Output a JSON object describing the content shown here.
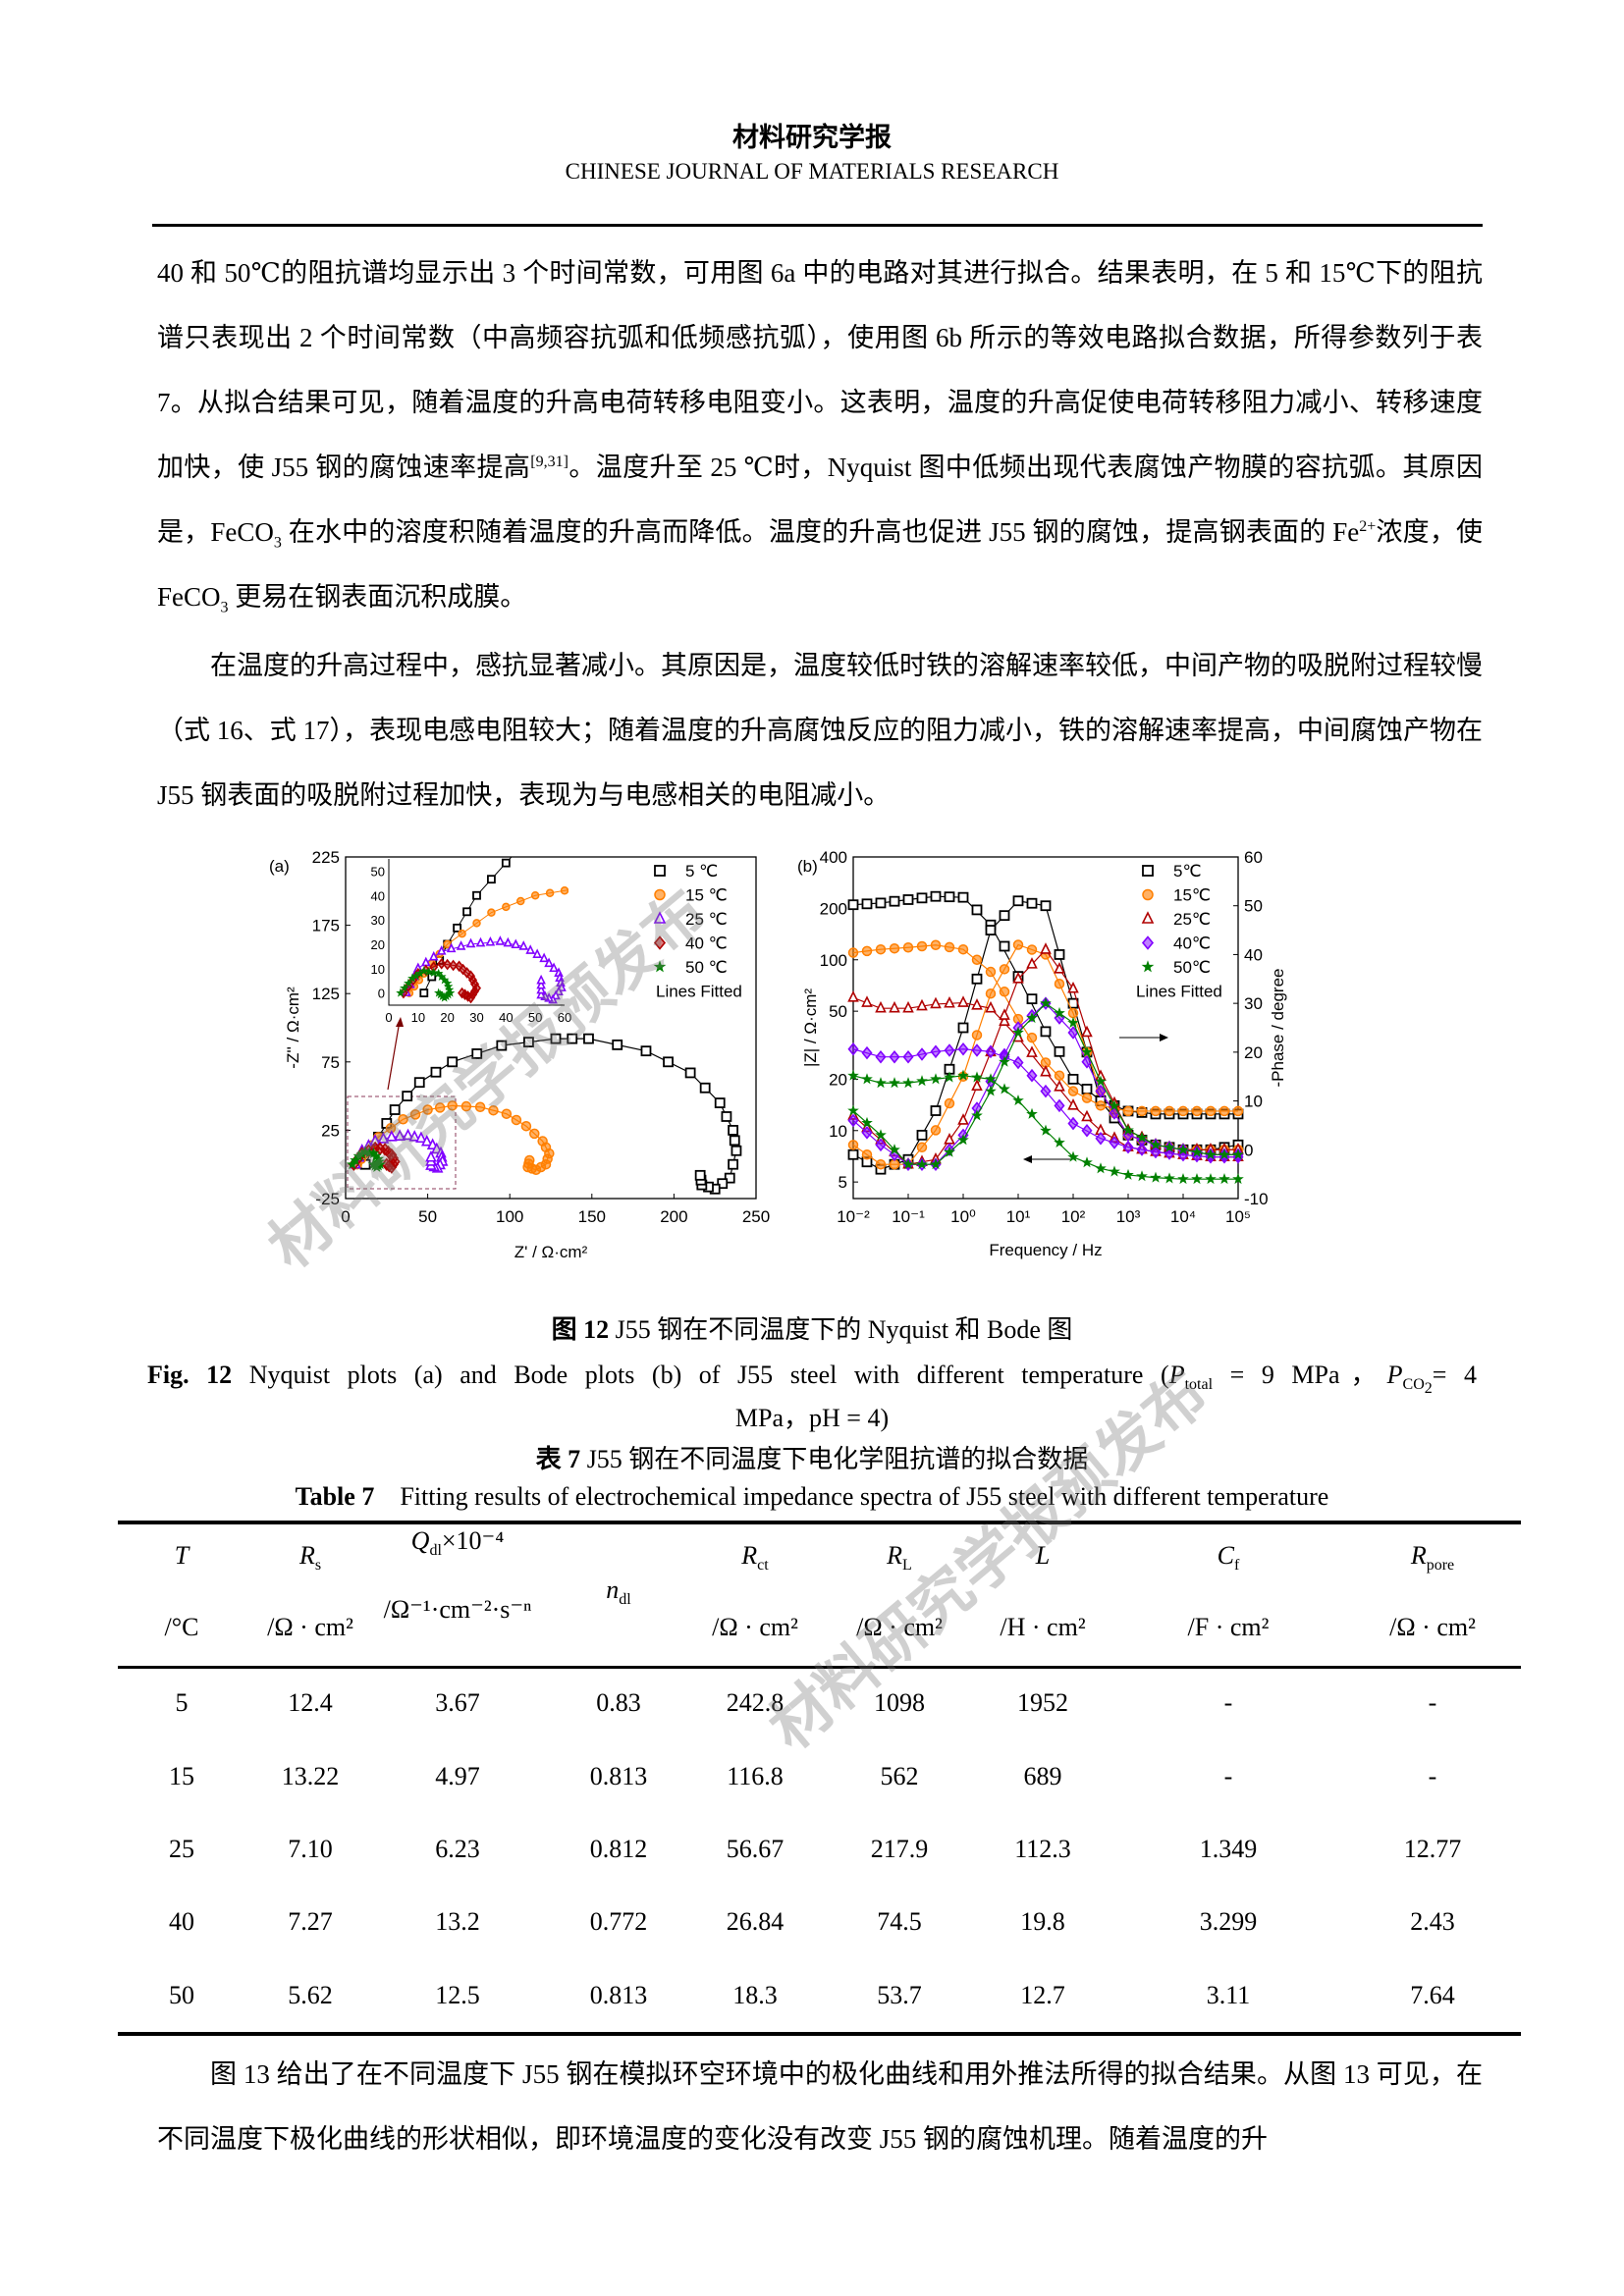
{
  "header": {
    "journal_cn": "材料研究学报",
    "journal_en": "CHINESE JOURNAL OF MATERIALS RESEARCH"
  },
  "paragraphs": [
    {
      "indent": false,
      "segments": [
        {
          "t": "40 和 50℃的阻抗谱均显示出 3 个时间常数，可用图 6a 中的电路对其进行拟合。结果表明，在 5 和 15℃下的阻抗谱只表现出 2 个时间常数（中高频容抗弧和低频感抗弧），使用图 6b 所示的等效电路拟合数据，所得参数列于表 7。从拟合结果可见，随着温度的升高电荷转移电阻变小。这表明，温度的升高促使电荷转移阻力减小、转移速度加快，使 J55 钢的腐蚀速率提高"
        },
        {
          "t": "[9,31]",
          "sup": true
        },
        {
          "t": "。温度升至 25 ℃时，Nyquist 图中低频出现代表腐蚀产物膜的容抗弧。其原因是，FeCO"
        },
        {
          "t": "3",
          "sub": true
        },
        {
          "t": " 在水中的溶度积随着温度的升高而降低。温度的升高也促进 J55 钢的腐蚀，提高钢表面的 Fe"
        },
        {
          "t": "2+",
          "sup": true
        },
        {
          "t": "浓度，使 FeCO"
        },
        {
          "t": "3",
          "sub": true
        },
        {
          "t": " 更易在钢表面沉积成膜。"
        }
      ]
    },
    {
      "indent": true,
      "segments": [
        {
          "t": "在温度的升高过程中，感抗显著减小。其原因是，温度较低时铁的溶解速率较低，中间产物的吸脱附过程较慢（式 16、式 17），表现电感电阻较大；随着温度的升高腐蚀反应的阻力减小，铁的溶解速率提高，中间腐蚀产物在 J55 钢表面的吸脱附过程加快，表现为与电感相关的电阻减小。"
        }
      ]
    },
    {
      "indent": true,
      "segments": [
        {
          "t": "图 13 给出了在不同温度下 J55 钢在模拟环空环境中的极化曲线和用外推法所得的拟合结果。从图 13 可见，在不同温度下极化曲线的形状相似，即环境温度的变化没有改变 J55 钢的腐蚀机理。随着温度的升"
        }
      ]
    }
  ],
  "figure": {
    "caption_cn_label": "图 12",
    "caption_cn": " J55 钢在不同温度下的 Nyquist 和 Bode 图",
    "caption_en_label": "Fig. 12",
    "caption_en": " Nyquist plots (a) and Bode plots (b) of J55 steel with different temperature (",
    "caption_en_p1": "P",
    "caption_en_p1_sub": "total",
    "caption_en_p1_val": " = 9 MPa，",
    "caption_en_p2": "P",
    "caption_en_p2_sub": "CO",
    "caption_en_p2_sub2": "2",
    "caption_en_p2_val": "= 4",
    "caption_en_line2": "MPa，pH = 4)"
  },
  "table": {
    "caption_cn_label": "表 7",
    "caption_cn": " J55 钢在不同温度下电化学阻抗谱的拟合数据",
    "caption_en_label": "Table 7",
    "caption_en": "Fitting results of electrochemical impedance spectra of J55 steel with different temperature",
    "headers": [
      {
        "sym": "T",
        "sub": "",
        "sup": "",
        "unit": "/°C"
      },
      {
        "sym": "R",
        "sub": "s",
        "sup": "",
        "unit": "/Ω · cm²"
      },
      {
        "sym": "Q",
        "sub": "dl",
        "sup": "×10⁻⁴",
        "unit": "/Ω⁻¹·cm⁻²·s⁻ⁿ"
      },
      {
        "sym": "n",
        "sub": "dl",
        "sup": "",
        "unit": ""
      },
      {
        "sym": "R",
        "sub": "ct",
        "sup": "",
        "unit": "/Ω · cm²"
      },
      {
        "sym": "R",
        "sub": "L",
        "sup": "",
        "unit": "/Ω · cm²"
      },
      {
        "sym": "L",
        "sub": "",
        "sup": "",
        "unit": "/H · cm²"
      },
      {
        "sym": "C",
        "sub": "f",
        "sup": "",
        "unit": "/F · cm²"
      },
      {
        "sym": "R",
        "sub": "pore",
        "sup": "",
        "unit": "/Ω · cm²"
      }
    ],
    "rows": [
      [
        "5",
        "12.4",
        "3.67",
        "0.83",
        "242.8",
        "1098",
        "1952",
        "-",
        "-"
      ],
      [
        "15",
        "13.22",
        "4.97",
        "0.813",
        "116.8",
        "562",
        "689",
        "-",
        "-"
      ],
      [
        "25",
        "7.10",
        "6.23",
        "0.812",
        "56.67",
        "217.9",
        "112.3",
        "1.349",
        "12.77"
      ],
      [
        "40",
        "7.27",
        "13.2",
        "0.772",
        "26.84",
        "74.5",
        "19.8",
        "3.299",
        "2.43"
      ],
      [
        "50",
        "5.62",
        "12.5",
        "0.813",
        "18.3",
        "53.7",
        "12.7",
        "3.11",
        "7.64"
      ]
    ]
  },
  "watermark": "材料研究学报预发布",
  "chart_data": [
    {
      "type": "scatter",
      "panel_label": "(a)",
      "xlabel": "Z' / Ω·cm²",
      "ylabel": "-Z'' / Ω·cm²",
      "xlim": [
        0,
        250
      ],
      "ylim": [
        -25,
        225
      ],
      "xticks": [
        "0",
        "50",
        "100",
        "150",
        "200",
        "250"
      ],
      "yticks": [
        "-25",
        "25",
        "75",
        "125",
        "175",
        "225"
      ],
      "legend_note": "Lines Fitted",
      "legend_placement": "top-right",
      "inset": {
        "xlim": [
          0,
          60
        ],
        "ylim": [
          -5,
          55
        ],
        "xticks": [
          "0",
          "10",
          "20",
          "30",
          "40",
          "50",
          "60"
        ],
        "yticks": [
          "0",
          "10",
          "20",
          "30",
          "40",
          "50"
        ]
      },
      "series": [
        {
          "name": "5 ℃",
          "color": "#000000",
          "marker": "square",
          "points": [
            [
              12,
              0
            ],
            [
              20,
              20
            ],
            [
              30,
              40
            ],
            [
              45,
              60
            ],
            [
              65,
              75
            ],
            [
              95,
              87
            ],
            [
              128,
              92
            ],
            [
              148,
              92
            ],
            [
              183,
              83
            ],
            [
              210,
              67
            ],
            [
              228,
              45
            ],
            [
              236,
              25
            ],
            [
              238,
              10
            ],
            [
              234,
              -10
            ],
            [
              225,
              -18
            ],
            [
              217,
              -15
            ],
            [
              216,
              -8
            ]
          ]
        },
        {
          "name": "15 ℃",
          "color": "#ff7f00",
          "marker": "circle",
          "points": [
            [
              7,
              0
            ],
            [
              12,
              8
            ],
            [
              20,
              20
            ],
            [
              35,
              33
            ],
            [
              50,
              40
            ],
            [
              65,
              43
            ],
            [
              82,
              42
            ],
            [
              98,
              37
            ],
            [
              110,
              28
            ],
            [
              120,
              17
            ],
            [
              124,
              8
            ],
            [
              122,
              0
            ],
            [
              116,
              -4
            ],
            [
              111,
              -2
            ],
            [
              112,
              3
            ]
          ]
        },
        {
          "name": "25 ℃",
          "color": "#8000ff",
          "marker": "triangle",
          "points": [
            [
              6,
              0
            ],
            [
              10,
              10
            ],
            [
              18,
              17
            ],
            [
              28,
              20
            ],
            [
              38,
              21
            ],
            [
              46,
              19
            ],
            [
              53,
              14
            ],
            [
              58,
              8
            ],
            [
              59,
              2
            ],
            [
              56,
              -3
            ],
            [
              52,
              -1
            ],
            [
              52,
              5
            ]
          ]
        },
        {
          "name": "40 ℃",
          "color": "#b00000",
          "marker": "diamond",
          "points": [
            [
              5,
              0
            ],
            [
              10,
              8
            ],
            [
              18,
              12
            ],
            [
              24,
              11
            ],
            [
              28,
              7
            ],
            [
              30,
              2
            ],
            [
              28,
              -2
            ],
            [
              25,
              0
            ]
          ]
        },
        {
          "name": "50 ℃",
          "color": "#008000",
          "marker": "star",
          "points": [
            [
              4,
              0
            ],
            [
              8,
              6
            ],
            [
              12,
              9
            ],
            [
              17,
              8
            ],
            [
              20,
              4
            ],
            [
              21,
              0
            ],
            [
              19,
              -2
            ],
            [
              17,
              0
            ]
          ]
        }
      ]
    },
    {
      "type": "line",
      "panel_label": "(b)",
      "xlabel": "Frequency / Hz",
      "ylabel": "|Z| / Ω·cm²",
      "y2label": "-Phase / degree",
      "xscale": "log",
      "yscale": "log",
      "xlim": [
        0.01,
        100000
      ],
      "ylim": [
        4,
        400
      ],
      "y2lim": [
        -10,
        60
      ],
      "xticks": [
        "10⁻²",
        "10⁻¹",
        "10⁰",
        "10¹",
        "10²",
        "10³",
        "10⁴",
        "10⁵"
      ],
      "yticks": [
        "5",
        "10",
        "20",
        "50",
        "100",
        "200",
        "400"
      ],
      "y2ticks": [
        "-10",
        "0",
        "10",
        "20",
        "30",
        "40",
        "50",
        "60"
      ],
      "legend_note": "Lines Fitted",
      "legend_placement": "top-right",
      "x": [
        0.01,
        0.0316,
        0.1,
        0.316,
        1,
        3.16,
        10,
        31.6,
        100,
        316,
        1000,
        3160,
        10000,
        31600,
        100000
      ],
      "series": [
        {
          "name": "5℃",
          "color": "#000000",
          "marker": "square",
          "modulus": [
            210,
            215,
            225,
            235,
            232,
            160,
            80,
            38,
            20,
            15,
            13,
            12.5,
            12.5,
            12.5,
            12.5
          ],
          "phase": [
            -1,
            -4,
            -2,
            8,
            25,
            45,
            51,
            50,
            30,
            10,
            3,
            1,
            0,
            0,
            1
          ]
        },
        {
          "name": "15℃",
          "color": "#ff7f00",
          "marker": "circle",
          "modulus": [
            110,
            115,
            118,
            122,
            115,
            85,
            45,
            25,
            17,
            14,
            13,
            13,
            13,
            13,
            13
          ],
          "phase": [
            1,
            -3,
            -3,
            4,
            15,
            32,
            42,
            40,
            28,
            12,
            3,
            1,
            0,
            0,
            0
          ]
        },
        {
          "name": "25℃",
          "color": "#b00000",
          "marker": "triangle",
          "modulus": [
            60,
            52,
            52,
            55,
            56,
            52,
            35,
            22,
            14,
            10,
            8,
            7.5,
            7.2,
            7,
            7
          ],
          "phase": [
            7,
            2,
            -3,
            -2,
            6,
            20,
            35,
            41,
            33,
            15,
            4,
            1,
            0,
            0,
            0
          ]
        },
        {
          "name": "40℃",
          "color": "#8000ff",
          "marker": "diamond",
          "modulus": [
            30,
            27,
            27,
            29,
            30,
            29,
            25,
            17,
            11,
            9,
            8,
            7.5,
            7.2,
            7,
            7
          ],
          "phase": [
            6,
            1,
            -3,
            -3,
            3,
            14,
            25,
            30,
            24,
            12,
            3,
            1,
            0,
            -1,
            -1
          ]
        },
        {
          "name": "50℃",
          "color": "#008000",
          "marker": "star",
          "modulus": [
            21,
            19,
            19,
            20,
            21,
            20,
            15,
            10,
            7,
            6,
            5.5,
            5.3,
            5.2,
            5.2,
            5.2
          ],
          "phase": [
            8,
            3,
            -3,
            -3,
            2,
            12,
            24,
            30,
            26,
            14,
            4,
            1,
            0,
            -1,
            -1
          ]
        }
      ]
    }
  ]
}
